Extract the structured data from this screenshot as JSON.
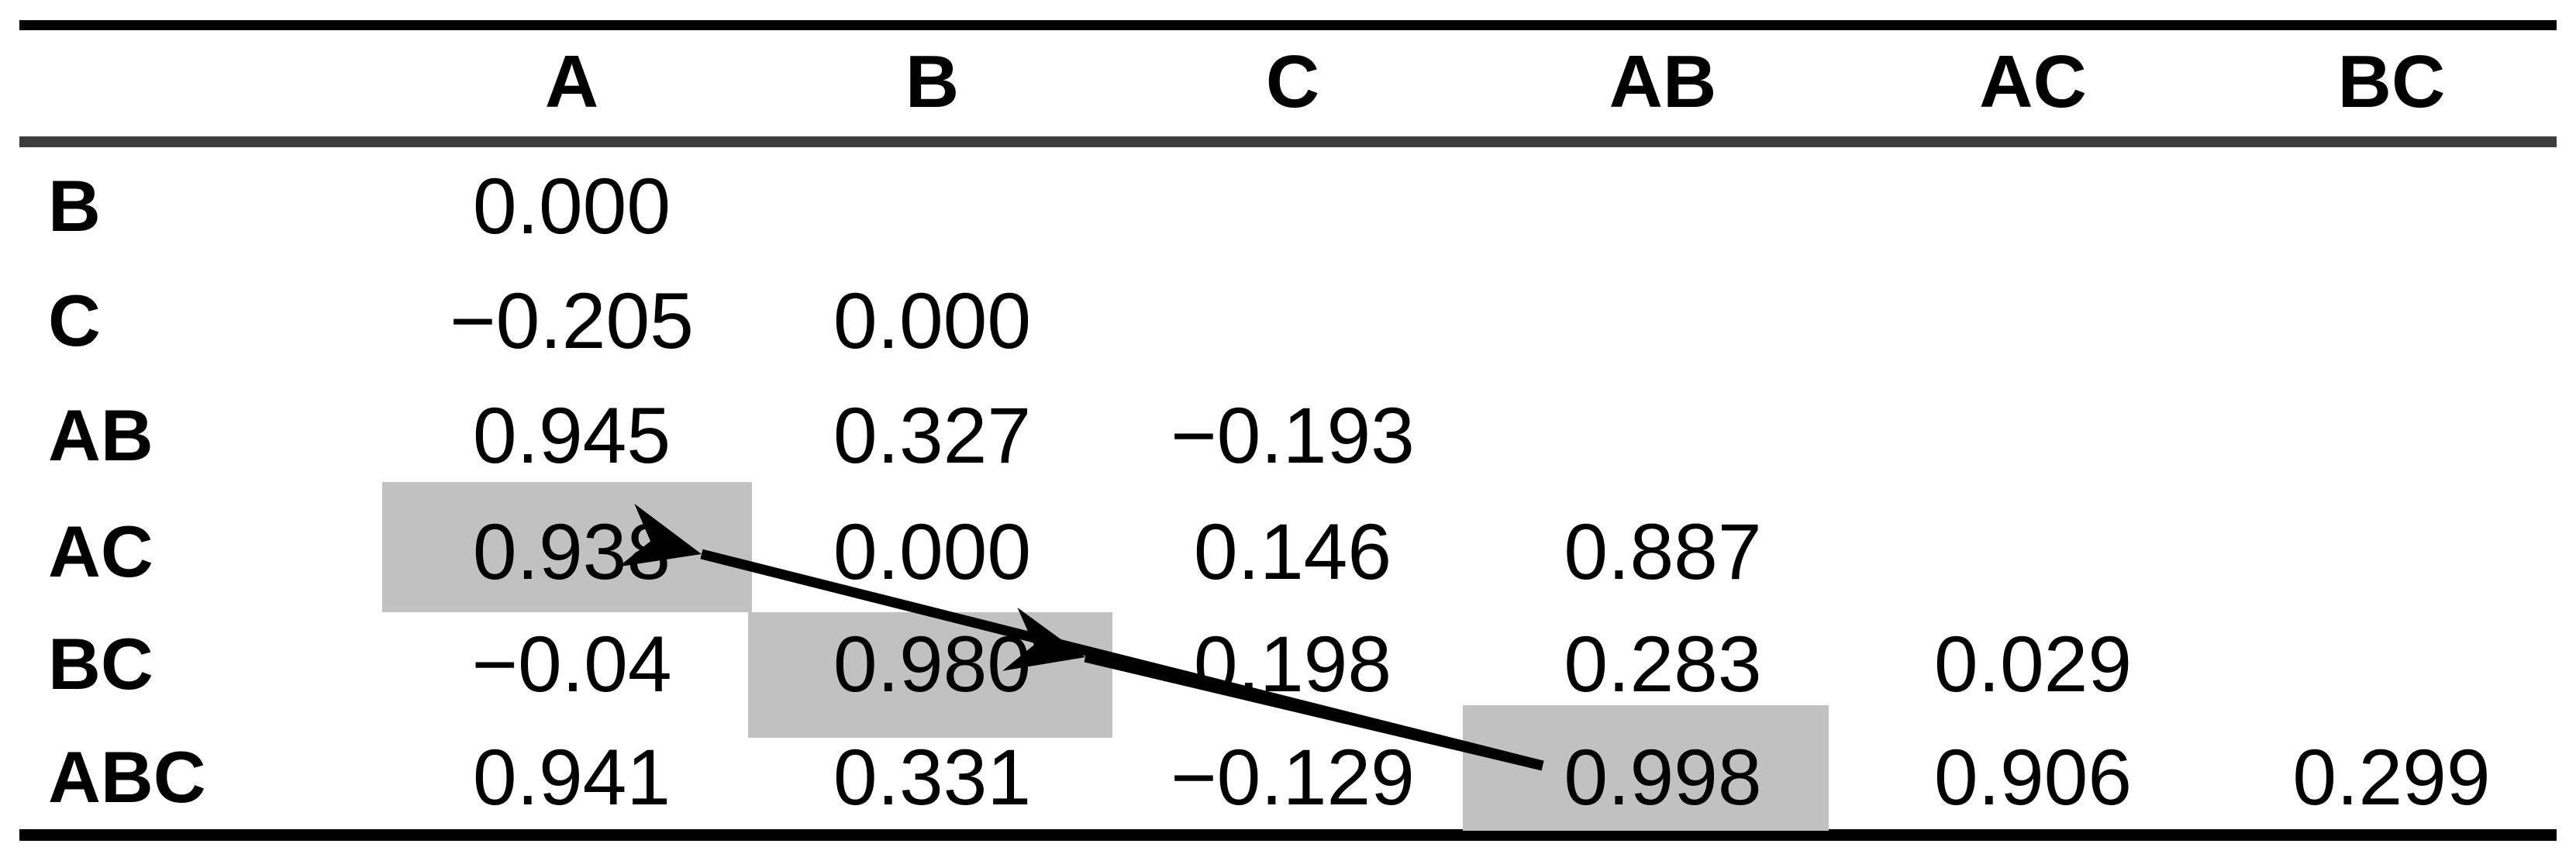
{
  "figure": {
    "type": "correlation-table",
    "columns": [
      "A",
      "B",
      "C",
      "AB",
      "AC",
      "BC"
    ],
    "rows": [
      {
        "label": "B",
        "values": [
          "0.000",
          "",
          "",
          "",
          "",
          ""
        ]
      },
      {
        "label": "C",
        "values": [
          "−0.205",
          "0.000",
          "",
          "",
          "",
          ""
        ]
      },
      {
        "label": "AB",
        "values": [
          "0.945",
          "0.327",
          "−0.193",
          "",
          "",
          ""
        ]
      },
      {
        "label": "AC",
        "values": [
          "0.938",
          "0.000",
          "0.146",
          "0.887",
          "",
          ""
        ]
      },
      {
        "label": "BC",
        "values": [
          "−0.04",
          "0.980",
          "0.198",
          "0.283",
          "0.029",
          ""
        ]
      },
      {
        "label": "ABC",
        "values": [
          "0.941",
          "0.331",
          "−0.129",
          "0.998",
          "0.906",
          "0.299"
        ]
      }
    ],
    "highlighted_cells": [
      {
        "row": "AC",
        "column": "A",
        "value": "0.938"
      },
      {
        "row": "BC",
        "column": "B",
        "value": "0.980"
      },
      {
        "row": "ABC",
        "column": "AB",
        "value": "0.998"
      }
    ],
    "arrows": [
      {
        "from": {
          "row": "ABC",
          "column": "AB",
          "value": "0.998"
        },
        "to": {
          "row": "AC",
          "column": "A",
          "value": "0.938"
        }
      },
      {
        "from": {
          "row": "ABC",
          "column": "AB",
          "value": "0.998"
        },
        "to": {
          "row": "BC",
          "column": "B",
          "value": "0.980"
        }
      }
    ],
    "colors": {
      "highlight": "#c1c1c1",
      "rule_top": "#000000",
      "rule_mid": "#3d3d3d",
      "rule_bottom": "#000000",
      "arrow": "#000000",
      "text": "#000000",
      "background": "#ffffff"
    }
  },
  "chart_data": {
    "type": "table",
    "title": "",
    "columns": [
      "",
      "A",
      "B",
      "C",
      "AB",
      "AC",
      "BC"
    ],
    "rows": [
      [
        "B",
        "0.000",
        "",
        "",
        "",
        "",
        ""
      ],
      [
        "C",
        "−0.205",
        "0.000",
        "",
        "",
        "",
        ""
      ],
      [
        "AB",
        "0.945",
        "0.327",
        "−0.193",
        "",
        "",
        ""
      ],
      [
        "AC",
        "0.938",
        "0.000",
        "0.146",
        "0.887",
        "",
        ""
      ],
      [
        "BC",
        "−0.04",
        "0.980",
        "0.198",
        "0.283",
        "0.029",
        ""
      ],
      [
        "ABC",
        "0.941",
        "0.331",
        "−0.129",
        "0.998",
        "0.906",
        "0.299"
      ]
    ],
    "highlighted_values": [
      "0.938",
      "0.980",
      "0.998"
    ],
    "annotations": [
      "arrow from cell (ABC, AB)=0.998 to cell (AC, A)=0.938",
      "arrow from cell (ABC, AB)=0.998 to cell (BC, B)=0.980"
    ],
    "layout_hints": {
      "style": "booktabs lower-triangular matrix",
      "grid": false,
      "legend": "none"
    }
  }
}
